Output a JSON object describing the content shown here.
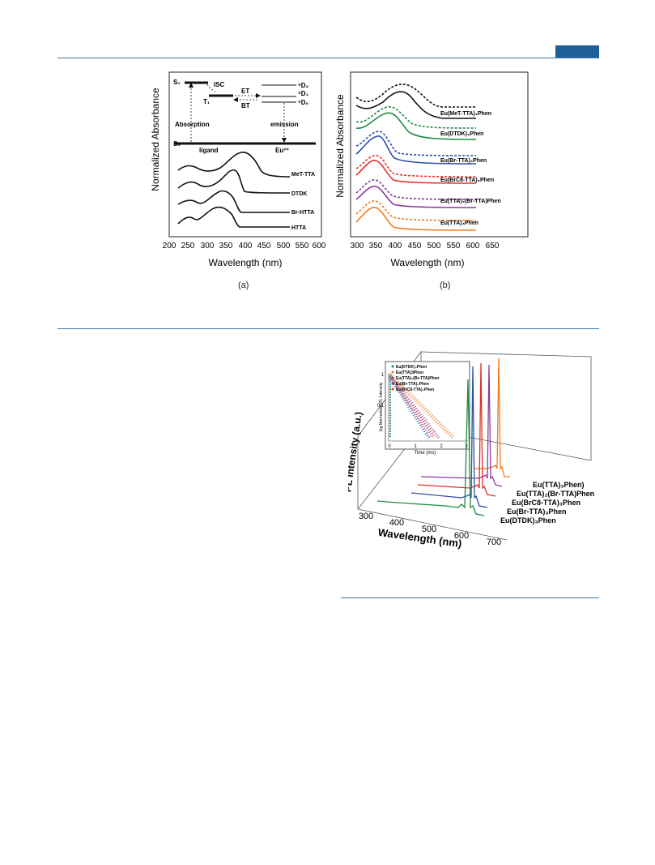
{
  "page": {
    "accent": "#1f5f99",
    "rule_color": "#3b78a8"
  },
  "figure_a": {
    "caption": "(a)",
    "ylabel": "Normalized Absorbance",
    "xlabel": "Wavelength (nm)",
    "ticks": [
      "200",
      "250",
      "300",
      "350",
      "400",
      "450",
      "500",
      "550",
      "600"
    ],
    "diagram": {
      "S1": "S₁",
      "S0": "S₀",
      "T1": "T₁",
      "isc": "ISC",
      "et": "ET",
      "bt": "BT",
      "d2": "⁵D₂",
      "d1": "⁵D₁",
      "d0": "⁵D₀",
      "absorption": "Absorption",
      "emission": "emission",
      "ligand": "ligand",
      "eu": "Eu³⁺"
    },
    "curve_labels": [
      "MeT-TTA",
      "DTDK",
      "Br-HTTA",
      "HTTA"
    ]
  },
  "figure_b": {
    "caption": "(b)",
    "ylabel": "Normalized Absorbance",
    "xlabel": "Wavelength (nm)",
    "ticks": [
      "300",
      "350",
      "400",
      "450",
      "500",
      "550",
      "600",
      "650"
    ],
    "curve_labels": [
      "Eu(MeT-TTA)₃Phen",
      "Eu(DTDK)₃Phen",
      "Eu(Br-TTA)₃Phen",
      "Eu(BrC8-TTA)₃Phen",
      "Eu(TTA)₂(Br-TTA)Phen",
      "Eu(TTA)₃Phen"
    ],
    "colors": [
      "#111111",
      "#1e8a45",
      "#2c4fa8",
      "#e0302c",
      "#8a3a9e",
      "#f07a1e"
    ]
  },
  "figure_c": {
    "ylabel": "PL Intensity (a.u.)",
    "xlabel": "Wavelength (nm)",
    "ticks": [
      "300",
      "400",
      "500",
      "600",
      "700"
    ],
    "series_labels": [
      "Eu(TTA)₃Phen)",
      "Eu(TTA)₂(Br-TTA)Phen",
      "Eu(BrC8-TTA)₃Phen",
      "Eu(Br-TTA)₃Phen",
      "Eu(DTDK)₃Phen"
    ],
    "colors": [
      "#f07a1e",
      "#8a3a9e",
      "#e0302c",
      "#2c4fa8",
      "#1e8a45"
    ],
    "inset": {
      "ylabel": "log Normalised PL Intensity",
      "xlabel": "Time (ms)",
      "yticks": [
        "1",
        "0.1"
      ],
      "xticks": [
        "0",
        "1",
        "2",
        "3"
      ],
      "legend": [
        "Eu(DTDK)₃Phen",
        "Eu(TTA)3Phen",
        "Eu(TTA)₂(Br-TTA)Phen",
        "Eu(Br-TTA)₃Phen",
        "Eu(BrC8-TTA)₃Phen"
      ],
      "legend_colors": [
        "#1e8a45",
        "#f07a1e",
        "#8a3a9e",
        "#2c4fa8",
        "#e0302c"
      ]
    }
  }
}
